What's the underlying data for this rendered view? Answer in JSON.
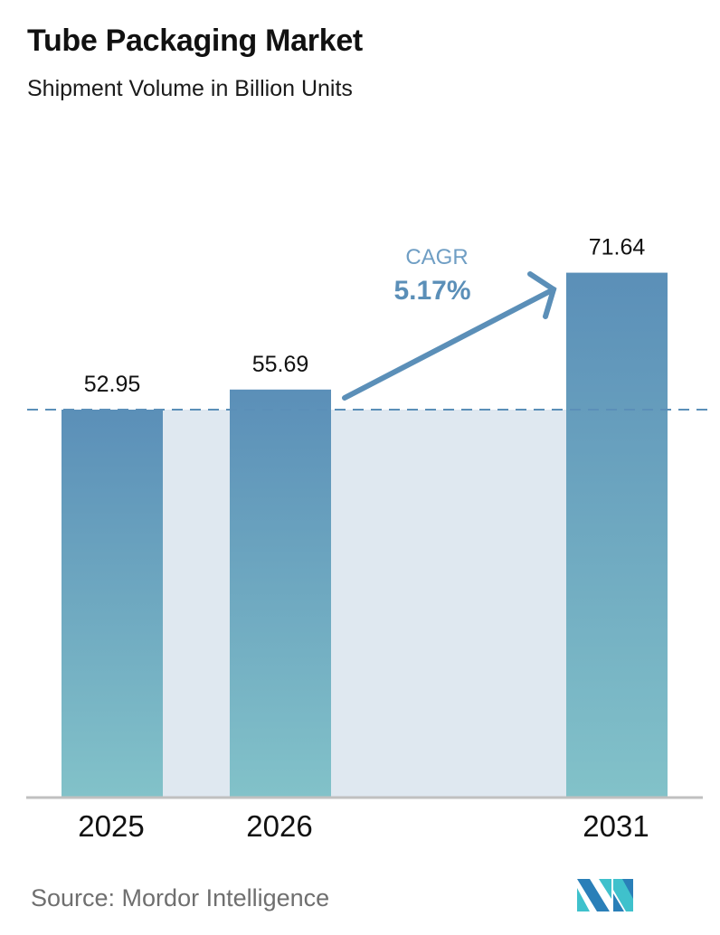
{
  "header": {
    "title": "Tube Packaging Market",
    "subtitle": "Shipment Volume in Billion Units"
  },
  "annotation": {
    "cagr_label": "CAGR",
    "cagr_value": "5.17%"
  },
  "footer": {
    "source": "Source:  Mordor Intelligence",
    "logo": "mordor-intelligence-logo"
  },
  "colors": {
    "bar_top": "#5b8fb8",
    "bar_bottom": "#82c2c9",
    "band_fill": "#dfe8f0",
    "accent": "#5b8fb8",
    "baseline": "#c0c0c0",
    "logo_dark": "#2a7fb8",
    "logo_light": "#3fc1cc"
  },
  "chart_data": {
    "type": "bar",
    "title": "Tube Packaging Market",
    "subtitle": "Shipment Volume in Billion Units",
    "categories": [
      "2025",
      "2026",
      "2031"
    ],
    "values": [
      52.95,
      55.69,
      71.64
    ],
    "value_labels": [
      "52.95",
      "55.69",
      "71.64"
    ],
    "xlabel": "",
    "ylabel": "Shipment Volume in Billion Units",
    "grid": false,
    "legend": null,
    "annotations": [
      {
        "text": "CAGR 5.17%",
        "type": "arrow",
        "from": "2026",
        "to": "2031"
      },
      {
        "type": "dashed-reference-line",
        "at_value": 52.95
      }
    ]
  }
}
